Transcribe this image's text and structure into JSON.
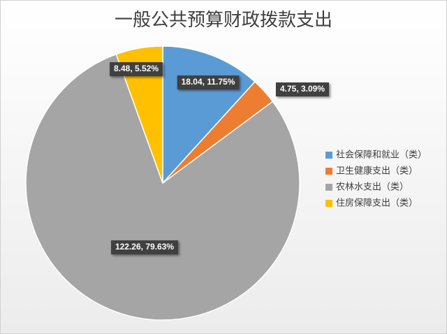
{
  "chart_data": {
    "type": "pie",
    "title": "一般公共预算财政拨款支出",
    "categories": [
      "社会保障和就业（类）",
      "卫生健康支出（类）",
      "农林水支出（类）",
      "住房保障支出（类）"
    ],
    "values": [
      18.04,
      4.75,
      122.26,
      8.48
    ],
    "value_labels": [
      "18.04, 11.75%",
      "4.75, 3.09%",
      "122.26, 79.63%",
      "8.48, 5.52%"
    ],
    "colors": [
      "#5b9bd5",
      "#ed7d31",
      "#a5a5a5",
      "#ffc000"
    ],
    "legend": "right"
  }
}
